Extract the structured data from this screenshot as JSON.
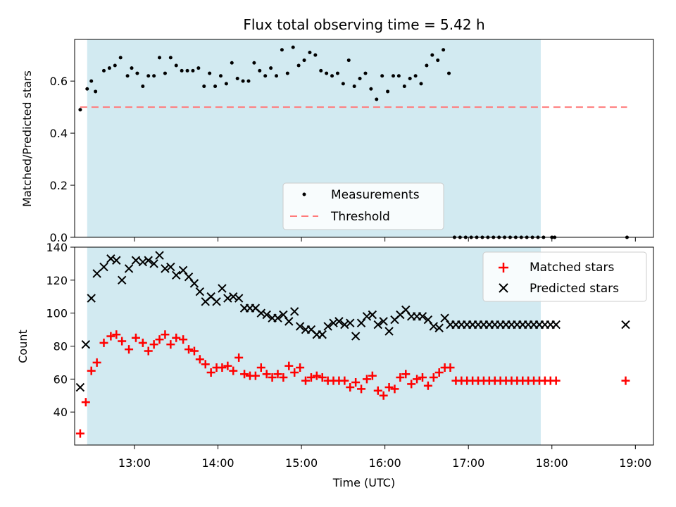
{
  "chart_data": [
    {
      "type": "scatter",
      "title": "Flux total observing time = 5.42 h",
      "ylabel": "Matched/Predicted stars",
      "xlabel": "",
      "ylim": [
        0.0,
        0.76
      ],
      "xlim": [
        "12:17",
        "19:13"
      ],
      "yticks": [
        "0.0",
        "0.2",
        "0.4",
        "0.6"
      ],
      "grid": false,
      "legend": "lower center",
      "shaded_interval": [
        "12:26",
        "17:52"
      ],
      "series": [
        {
          "name": "Measurements",
          "marker": "dot",
          "x": [
            "12:21",
            "12:26",
            "12:29",
            "12:32",
            "12:38",
            "12:42",
            "12:46",
            "12:50",
            "12:55",
            "12:58",
            "13:02",
            "13:06",
            "13:10",
            "13:14",
            "13:18",
            "13:22",
            "13:26",
            "13:30",
            "13:34",
            "13:38",
            "13:42",
            "13:46",
            "13:50",
            "13:54",
            "13:58",
            "14:02",
            "14:06",
            "14:10",
            "14:14",
            "14:18",
            "14:22",
            "14:26",
            "14:30",
            "14:34",
            "14:38",
            "14:42",
            "14:46",
            "14:50",
            "14:54",
            "14:58",
            "15:02",
            "15:06",
            "15:10",
            "15:14",
            "15:18",
            "15:22",
            "15:26",
            "15:30",
            "15:34",
            "15:38",
            "15:42",
            "15:46",
            "15:50",
            "15:54",
            "15:58",
            "16:02",
            "16:06",
            "16:10",
            "16:14",
            "16:18",
            "16:22",
            "16:26",
            "16:30",
            "16:34",
            "16:38",
            "16:42",
            "16:46",
            "16:50",
            "16:54",
            "16:58",
            "17:02",
            "17:06",
            "17:10",
            "17:14",
            "17:18",
            "17:22",
            "17:26",
            "17:30",
            "17:34",
            "17:38",
            "17:42",
            "17:46",
            "17:50",
            "17:54",
            "18:00",
            "18:02",
            "18:54"
          ],
          "y": [
            0.49,
            0.57,
            0.6,
            0.56,
            0.64,
            0.65,
            0.66,
            0.69,
            0.62,
            0.65,
            0.63,
            0.58,
            0.62,
            0.62,
            0.69,
            0.63,
            0.69,
            0.66,
            0.64,
            0.64,
            0.64,
            0.65,
            0.58,
            0.63,
            0.58,
            0.62,
            0.59,
            0.67,
            0.61,
            0.6,
            0.6,
            0.67,
            0.64,
            0.62,
            0.65,
            0.62,
            0.72,
            0.63,
            0.73,
            0.66,
            0.68,
            0.71,
            0.7,
            0.64,
            0.63,
            0.62,
            0.63,
            0.59,
            0.68,
            0.58,
            0.61,
            0.63,
            0.57,
            0.53,
            0.62,
            0.56,
            0.62,
            0.62,
            0.58,
            0.61,
            0.62,
            0.59,
            0.66,
            0.7,
            0.68,
            0.72,
            0.63,
            0.0,
            0.0,
            0.0,
            0.0,
            0.0,
            0.0,
            0.0,
            0.0,
            0.0,
            0.0,
            0.0,
            0.0,
            0.0,
            0.0,
            0.0,
            0.0,
            0.0,
            0.0,
            0.0,
            0.0
          ]
        },
        {
          "name": "Threshold",
          "style": "dashed",
          "color": "#ff7b7b",
          "x": [
            "12:21",
            "18:54"
          ],
          "y": [
            0.5,
            0.5
          ]
        }
      ]
    },
    {
      "type": "scatter",
      "title": "",
      "xlabel": "Time (UTC)",
      "ylabel": "Count",
      "ylim": [
        20,
        140
      ],
      "xlim": [
        "12:17",
        "19:13"
      ],
      "yticks": [
        "40",
        "60",
        "80",
        "100",
        "120",
        "140"
      ],
      "xticks": [
        "13:00",
        "14:00",
        "15:00",
        "16:00",
        "17:00",
        "18:00",
        "19:00"
      ],
      "grid": false,
      "legend": "upper right",
      "shaded_interval": [
        "12:26",
        "17:52"
      ],
      "series": [
        {
          "name": "Matched stars",
          "marker": "plus",
          "color": "#ff0000",
          "x": [
            "12:21",
            "12:25",
            "12:29",
            "12:33",
            "12:38",
            "12:43",
            "12:47",
            "12:51",
            "12:56",
            "13:01",
            "13:06",
            "13:10",
            "13:14",
            "13:18",
            "13:22",
            "13:26",
            "13:30",
            "13:35",
            "13:39",
            "13:43",
            "13:47",
            "13:51",
            "13:55",
            "13:59",
            "14:03",
            "14:07",
            "14:11",
            "14:15",
            "14:19",
            "14:23",
            "14:27",
            "14:31",
            "14:35",
            "14:39",
            "14:43",
            "14:47",
            "14:51",
            "14:55",
            "14:59",
            "15:03",
            "15:07",
            "15:11",
            "15:15",
            "15:19",
            "15:23",
            "15:27",
            "15:31",
            "15:35",
            "15:39",
            "15:43",
            "15:47",
            "15:51",
            "15:55",
            "15:59",
            "16:03",
            "16:07",
            "16:11",
            "16:15",
            "16:19",
            "16:23",
            "16:27",
            "16:31",
            "16:35",
            "16:39",
            "16:43",
            "16:47",
            "16:51",
            "16:55",
            "16:59",
            "17:03",
            "17:07",
            "17:11",
            "17:15",
            "17:19",
            "17:23",
            "17:27",
            "17:31",
            "17:35",
            "17:39",
            "17:43",
            "17:47",
            "17:51",
            "17:55",
            "17:59",
            "18:03",
            "18:53"
          ],
          "y": [
            27,
            46,
            65,
            70,
            82,
            86,
            87,
            83,
            78,
            85,
            82,
            77,
            81,
            84,
            87,
            81,
            85,
            84,
            78,
            77,
            72,
            69,
            64,
            67,
            67,
            68,
            65,
            73,
            63,
            62,
            62,
            67,
            63,
            61,
            63,
            61,
            68,
            64,
            67,
            59,
            61,
            62,
            61,
            59,
            59,
            59,
            59,
            55,
            58,
            54,
            60,
            62,
            53,
            50,
            55,
            54,
            61,
            63,
            57,
            60,
            61,
            56,
            61,
            64,
            67,
            67,
            59,
            59,
            59,
            59,
            59,
            59,
            59,
            59,
            59,
            59,
            59,
            59,
            59,
            59,
            59,
            59,
            59,
            59,
            59,
            59
          ]
        },
        {
          "name": "Predicted stars",
          "marker": "x",
          "color": "#000000",
          "x": [
            "12:21",
            "12:25",
            "12:29",
            "12:33",
            "12:38",
            "12:43",
            "12:47",
            "12:51",
            "12:56",
            "13:01",
            "13:06",
            "13:10",
            "13:14",
            "13:18",
            "13:22",
            "13:26",
            "13:30",
            "13:35",
            "13:39",
            "13:43",
            "13:47",
            "13:51",
            "13:55",
            "13:59",
            "14:03",
            "14:07",
            "14:11",
            "14:15",
            "14:19",
            "14:23",
            "14:27",
            "14:31",
            "14:35",
            "14:39",
            "14:43",
            "14:47",
            "14:51",
            "14:55",
            "14:59",
            "15:03",
            "15:07",
            "15:11",
            "15:15",
            "15:19",
            "15:23",
            "15:27",
            "15:31",
            "15:35",
            "15:39",
            "15:43",
            "15:47",
            "15:51",
            "15:55",
            "15:59",
            "16:03",
            "16:07",
            "16:11",
            "16:15",
            "16:19",
            "16:23",
            "16:27",
            "16:31",
            "16:35",
            "16:39",
            "16:43",
            "16:47",
            "16:51",
            "16:55",
            "16:59",
            "17:03",
            "17:07",
            "17:11",
            "17:15",
            "17:19",
            "17:23",
            "17:27",
            "17:31",
            "17:35",
            "17:39",
            "17:43",
            "17:47",
            "17:51",
            "17:55",
            "17:59",
            "18:03",
            "18:53"
          ],
          "y": [
            55,
            81,
            109,
            124,
            128,
            133,
            132,
            120,
            127,
            132,
            131,
            132,
            130,
            135,
            127,
            128,
            123,
            126,
            122,
            118,
            113,
            107,
            110,
            107,
            115,
            109,
            110,
            109,
            103,
            103,
            103,
            100,
            99,
            97,
            97,
            99,
            95,
            101,
            92,
            90,
            90,
            87,
            87,
            92,
            94,
            95,
            93,
            94,
            86,
            94,
            98,
            99,
            93,
            95,
            89,
            96,
            99,
            102,
            98,
            98,
            98,
            96,
            92,
            91,
            97,
            93,
            93,
            93,
            93,
            93,
            93,
            93,
            93,
            93,
            93,
            93,
            93,
            93,
            93,
            93,
            93,
            93,
            93,
            93,
            93,
            93
          ]
        }
      ]
    }
  ]
}
